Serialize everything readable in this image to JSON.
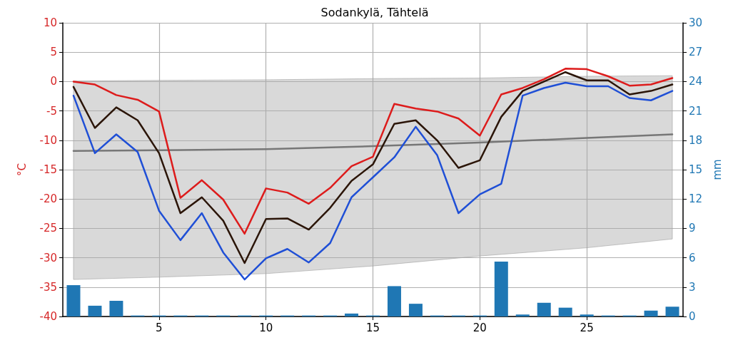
{
  "chart_data": {
    "type": "line",
    "title": "Sodankylä, Tähtelä",
    "ylabel": "°C",
    "y2label": "mm",
    "xlim": [
      0.5,
      29.5
    ],
    "xticks": [
      5,
      10,
      15,
      20,
      25
    ],
    "ylim": [
      -40,
      10
    ],
    "yticks": [
      -40,
      -35,
      -30,
      -25,
      -20,
      -15,
      -10,
      -5,
      0,
      5,
      10
    ],
    "y2lim": [
      0,
      30
    ],
    "y2ticks": [
      0,
      3,
      6,
      9,
      12,
      15,
      18,
      21,
      24,
      27,
      30
    ],
    "grid": true,
    "marker": "none",
    "line_style": "solid",
    "series": [
      {
        "type": "bar",
        "axis": "y2",
        "color": "#1f77b4",
        "x": [
          1,
          2,
          3,
          4,
          5,
          6,
          7,
          8,
          9,
          10,
          11,
          12,
          13,
          14,
          15,
          16,
          17,
          18,
          19,
          20,
          21,
          22,
          23,
          24,
          25,
          26,
          27,
          28,
          29
        ],
        "values": [
          3.2,
          1.1,
          1.6,
          0.1,
          0.1,
          0.1,
          0.1,
          0.1,
          0.1,
          0.1,
          0.1,
          0.1,
          0.1,
          0.3,
          0.1,
          3.1,
          1.3,
          0.1,
          0.1,
          0.1,
          5.6,
          0.2,
          1.4,
          0.9,
          0.2,
          0.1,
          0.1,
          0.6,
          1.0
        ]
      },
      {
        "color": "#777777",
        "x": [
          1,
          5,
          10,
          15,
          20,
          25,
          29
        ],
        "values": [
          -11.8,
          -11.7,
          -11.5,
          -11.0,
          -10.4,
          -9.6,
          -9.0
        ],
        "lower": [
          -33.7,
          -33.3,
          -32.7,
          -31.4,
          -29.7,
          -28.3,
          -26.8
        ],
        "upper": [
          0.1,
          0.2,
          0.3,
          0.5,
          0.6,
          0.9,
          1.0
        ]
      },
      {
        "color": "#dd1c1c",
        "x": [
          1,
          2,
          3,
          4,
          5,
          6,
          7,
          8,
          9,
          10,
          11,
          12,
          13,
          14,
          15,
          16,
          17,
          18,
          19,
          20,
          21,
          22,
          23,
          24,
          25,
          26,
          27,
          28,
          29
        ],
        "values": [
          0,
          -0.5,
          -2.3,
          -3.1,
          -5.1,
          -19.8,
          -16.8,
          -20.1,
          -25.9,
          -18.2,
          -18.9,
          -20.8,
          -18.1,
          -14.4,
          -12.8,
          -3.8,
          -4.6,
          -5.1,
          -6.3,
          -9.2,
          -2.2,
          -1.1,
          0.4,
          2.2,
          2.1,
          0.9,
          -0.7,
          -0.5,
          0.6
        ]
      },
      {
        "color": "#2b1508",
        "x": [
          1,
          2,
          3,
          4,
          5,
          6,
          7,
          8,
          9,
          10,
          11,
          12,
          13,
          14,
          15,
          16,
          17,
          18,
          19,
          20,
          21,
          22,
          23,
          24,
          25,
          26,
          27,
          28,
          29
        ],
        "values": [
          -0.9,
          -7.9,
          -4.4,
          -6.6,
          -12.2,
          -22.4,
          -19.7,
          -23.7,
          -30.9,
          -23.4,
          -23.3,
          -25.2,
          -21.5,
          -16.9,
          -14.1,
          -7.2,
          -6.6,
          -10.0,
          -14.7,
          -13.4,
          -6.0,
          -1.6,
          0,
          1.6,
          0.2,
          0.2,
          -2.2,
          -1.6,
          -0.5
        ]
      },
      {
        "color": "#1f4fd6",
        "x": [
          1,
          2,
          3,
          4,
          5,
          6,
          7,
          8,
          9,
          10,
          11,
          12,
          13,
          14,
          15,
          16,
          17,
          18,
          19,
          20,
          21,
          22,
          23,
          24,
          25,
          26,
          27,
          28,
          29
        ],
        "values": [
          -2.4,
          -12.2,
          -9.0,
          -12.0,
          -22.0,
          -27.0,
          -22.4,
          -29.1,
          -33.7,
          -30.1,
          -28.5,
          -30.8,
          -27.5,
          -19.7,
          -16.3,
          -12.9,
          -7.7,
          -12.5,
          -22.4,
          -19.2,
          -17.4,
          -2.4,
          -1.1,
          -0.2,
          -0.8,
          -0.8,
          -2.8,
          -3.2,
          -1.6
        ]
      }
    ]
  }
}
